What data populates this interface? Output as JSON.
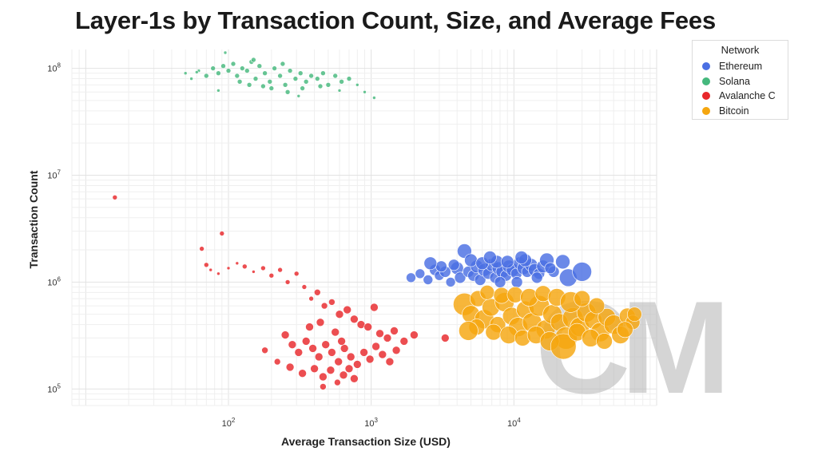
{
  "chart_data": {
    "type": "scatter",
    "title": "Layer-1s by Transaction Count, Size, and Average Fees",
    "xlabel": "Average Transaction Size (USD)",
    "ylabel": "Transaction Count",
    "xscale": "log",
    "yscale": "log",
    "xlim": [
      8,
      100000
    ],
    "ylim": [
      70000,
      150000000
    ],
    "grid": true,
    "x_ticks": [
      {
        "value": 100,
        "base": "10",
        "exp": "2"
      },
      {
        "value": 1000,
        "base": "10",
        "exp": "3"
      },
      {
        "value": 10000,
        "base": "10",
        "exp": "4"
      }
    ],
    "y_ticks": [
      {
        "value": 100000,
        "base": "10",
        "exp": "5"
      },
      {
        "value": 1000000,
        "base": "10",
        "exp": "6"
      },
      {
        "value": 10000000,
        "base": "10",
        "exp": "7"
      },
      {
        "value": 100000000,
        "base": "10",
        "exp": "8"
      }
    ],
    "legend_title": "Network",
    "legend_position": "top-right",
    "watermark": "CM",
    "series": [
      {
        "name": "Ethereum",
        "color": "#4a6fe3",
        "points": [
          [
            1900,
            1100000,
            6
          ],
          [
            2200,
            1200000,
            6
          ],
          [
            2500,
            1050000,
            6
          ],
          [
            2800,
            1300000,
            7
          ],
          [
            3000,
            1150000,
            6
          ],
          [
            3300,
            1250000,
            7
          ],
          [
            3600,
            1000000,
            6
          ],
          [
            4000,
            1350000,
            8
          ],
          [
            4200,
            1100000,
            7
          ],
          [
            4500,
            1950000,
            9
          ],
          [
            4800,
            1250000,
            7
          ],
          [
            5200,
            1150000,
            7
          ],
          [
            5500,
            1400000,
            8
          ],
          [
            5800,
            1050000,
            7
          ],
          [
            6200,
            1300000,
            8
          ],
          [
            6600,
            1200000,
            7
          ],
          [
            7000,
            1450000,
            8
          ],
          [
            7400,
            1100000,
            7
          ],
          [
            7800,
            1350000,
            8
          ],
          [
            8300,
            1250000,
            8
          ],
          [
            8800,
            1150000,
            7
          ],
          [
            9200,
            1400000,
            8
          ],
          [
            9800,
            1300000,
            8
          ],
          [
            10400,
            1200000,
            7
          ],
          [
            11000,
            1500000,
            8
          ],
          [
            11700,
            1350000,
            8
          ],
          [
            12400,
            1250000,
            7
          ],
          [
            13200,
            1450000,
            8
          ],
          [
            14000,
            1300000,
            8
          ],
          [
            15000,
            1200000,
            7
          ],
          [
            16000,
            1400000,
            8
          ],
          [
            17000,
            1600000,
            9
          ],
          [
            19000,
            1250000,
            7
          ],
          [
            22000,
            1550000,
            9
          ],
          [
            24000,
            1100000,
            11
          ],
          [
            30000,
            1250000,
            12
          ],
          [
            5000,
            1600000,
            8
          ],
          [
            6000,
            1500000,
            8
          ],
          [
            7600,
            1550000,
            8
          ],
          [
            9000,
            1550000,
            8
          ],
          [
            12000,
            1600000,
            8
          ],
          [
            3800,
            1450000,
            7
          ],
          [
            3100,
            1400000,
            7
          ],
          [
            8000,
            1000000,
            7
          ],
          [
            10500,
            1000000,
            7
          ],
          [
            14500,
            1100000,
            7
          ],
          [
            18000,
            1350000,
            7
          ],
          [
            2600,
            1500000,
            8
          ],
          [
            6800,
            1700000,
            8
          ],
          [
            11300,
            1700000,
            8
          ]
        ]
      },
      {
        "name": "Solana",
        "color": "#45b87d",
        "points": [
          [
            50,
            90000000,
            2
          ],
          [
            55,
            80000000,
            2
          ],
          [
            62,
            95000000,
            2
          ],
          [
            70,
            85000000,
            3
          ],
          [
            78,
            100000000,
            3
          ],
          [
            85,
            90000000,
            3
          ],
          [
            92,
            105000000,
            3
          ],
          [
            100,
            95000000,
            3
          ],
          [
            108,
            110000000,
            3
          ],
          [
            115,
            85000000,
            3
          ],
          [
            125,
            100000000,
            3
          ],
          [
            135,
            95000000,
            3
          ],
          [
            145,
            115000000,
            3
          ],
          [
            155,
            80000000,
            3
          ],
          [
            165,
            105000000,
            3
          ],
          [
            180,
            90000000,
            3
          ],
          [
            195,
            75000000,
            3
          ],
          [
            210,
            100000000,
            3
          ],
          [
            230,
            85000000,
            3
          ],
          [
            250,
            70000000,
            3
          ],
          [
            270,
            95000000,
            3
          ],
          [
            295,
            80000000,
            3
          ],
          [
            320,
            90000000,
            3
          ],
          [
            350,
            75000000,
            3
          ],
          [
            380,
            85000000,
            3
          ],
          [
            420,
            80000000,
            3
          ],
          [
            460,
            90000000,
            3
          ],
          [
            500,
            70000000,
            3
          ],
          [
            560,
            85000000,
            3
          ],
          [
            620,
            75000000,
            3
          ],
          [
            700,
            80000000,
            3
          ],
          [
            800,
            70000000,
            2
          ],
          [
            900,
            60000000,
            2
          ],
          [
            1050,
            53000000,
            2
          ],
          [
            95,
            140000000,
            2
          ],
          [
            60,
            92000000,
            2
          ],
          [
            140,
            70000000,
            3
          ],
          [
            200,
            65000000,
            3
          ],
          [
            260,
            60000000,
            3
          ],
          [
            330,
            65000000,
            3
          ],
          [
            440,
            68000000,
            3
          ],
          [
            150,
            120000000,
            3
          ],
          [
            240,
            110000000,
            3
          ],
          [
            120,
            75000000,
            3
          ],
          [
            175,
            68000000,
            3
          ],
          [
            600,
            62000000,
            2
          ],
          [
            310,
            55000000,
            2
          ],
          [
            85,
            62000000,
            2
          ]
        ]
      },
      {
        "name": "Avalanche C",
        "color": "#e8272b",
        "points": [
          [
            16,
            6200000,
            3
          ],
          [
            90,
            2850000,
            3
          ],
          [
            65,
            2050000,
            3
          ],
          [
            70,
            1450000,
            3
          ],
          [
            75,
            1300000,
            2
          ],
          [
            85,
            1200000,
            2
          ],
          [
            100,
            1350000,
            2
          ],
          [
            115,
            1500000,
            2
          ],
          [
            130,
            1400000,
            3
          ],
          [
            150,
            1250000,
            2
          ],
          [
            175,
            1350000,
            3
          ],
          [
            200,
            1150000,
            3
          ],
          [
            230,
            1300000,
            3
          ],
          [
            260,
            1000000,
            3
          ],
          [
            300,
            1200000,
            3
          ],
          [
            340,
            900000,
            3
          ],
          [
            380,
            700000,
            3
          ],
          [
            420,
            800000,
            4
          ],
          [
            470,
            600000,
            4
          ],
          [
            530,
            650000,
            4
          ],
          [
            600,
            500000,
            5
          ],
          [
            680,
            550000,
            5
          ],
          [
            760,
            450000,
            5
          ],
          [
            850,
            400000,
            5
          ],
          [
            950,
            380000,
            5
          ],
          [
            1050,
            580000,
            5
          ],
          [
            1150,
            330000,
            5
          ],
          [
            1300,
            300000,
            5
          ],
          [
            1450,
            350000,
            5
          ],
          [
            1700,
            280000,
            5
          ],
          [
            2000,
            320000,
            5
          ],
          [
            3300,
            300000,
            5
          ],
          [
            250,
            320000,
            5
          ],
          [
            280,
            260000,
            5
          ],
          [
            310,
            220000,
            5
          ],
          [
            350,
            280000,
            5
          ],
          [
            390,
            240000,
            5
          ],
          [
            430,
            200000,
            5
          ],
          [
            480,
            260000,
            5
          ],
          [
            530,
            220000,
            5
          ],
          [
            590,
            180000,
            5
          ],
          [
            650,
            240000,
            5
          ],
          [
            720,
            200000,
            5
          ],
          [
            800,
            170000,
            5
          ],
          [
            890,
            220000,
            5
          ],
          [
            980,
            190000,
            5
          ],
          [
            1080,
            250000,
            5
          ],
          [
            1200,
            210000,
            5
          ],
          [
            1350,
            180000,
            5
          ],
          [
            1500,
            230000,
            5
          ],
          [
            270,
            160000,
            5
          ],
          [
            330,
            140000,
            5
          ],
          [
            400,
            155000,
            5
          ],
          [
            460,
            130000,
            5
          ],
          [
            520,
            150000,
            5
          ],
          [
            580,
            115000,
            4
          ],
          [
            640,
            135000,
            5
          ],
          [
            700,
            155000,
            5
          ],
          [
            760,
            125000,
            5
          ],
          [
            460,
            105000,
            4
          ],
          [
            560,
            340000,
            5
          ],
          [
            620,
            280000,
            5
          ],
          [
            370,
            380000,
            5
          ],
          [
            440,
            420000,
            5
          ],
          [
            180,
            230000,
            4
          ],
          [
            220,
            180000,
            4
          ]
        ]
      },
      {
        "name": "Bitcoin",
        "color": "#f5a60f",
        "points": [
          [
            4500,
            620000,
            14
          ],
          [
            5000,
            500000,
            11
          ],
          [
            5600,
            700000,
            10
          ],
          [
            6200,
            450000,
            12
          ],
          [
            6900,
            580000,
            11
          ],
          [
            7700,
            400000,
            10
          ],
          [
            8600,
            650000,
            12
          ],
          [
            9600,
            480000,
            11
          ],
          [
            10700,
            380000,
            12
          ],
          [
            12000,
            550000,
            11
          ],
          [
            13400,
            420000,
            12
          ],
          [
            15000,
            600000,
            13
          ],
          [
            16700,
            360000,
            12
          ],
          [
            18600,
            500000,
            12
          ],
          [
            20800,
            420000,
            11
          ],
          [
            23200,
            300000,
            14
          ],
          [
            25900,
            460000,
            13
          ],
          [
            28900,
            380000,
            12
          ],
          [
            32200,
            520000,
            12
          ],
          [
            36000,
            440000,
            11
          ],
          [
            40200,
            340000,
            12
          ],
          [
            44800,
            470000,
            11
          ],
          [
            50000,
            400000,
            12
          ],
          [
            55800,
            320000,
            11
          ],
          [
            62300,
            480000,
            10
          ],
          [
            68000,
            420000,
            9
          ],
          [
            5500,
            380000,
            10
          ],
          [
            7200,
            340000,
            10
          ],
          [
            9200,
            320000,
            11
          ],
          [
            11500,
            300000,
            10
          ],
          [
            14300,
            320000,
            11
          ],
          [
            17800,
            280000,
            12
          ],
          [
            22200,
            250000,
            16
          ],
          [
            27700,
            340000,
            11
          ],
          [
            34500,
            300000,
            11
          ],
          [
            43000,
            280000,
            10
          ],
          [
            6500,
            800000,
            9
          ],
          [
            8200,
            750000,
            10
          ],
          [
            10200,
            760000,
            10
          ],
          [
            12800,
            720000,
            11
          ],
          [
            16000,
            780000,
            10
          ],
          [
            20000,
            720000,
            11
          ],
          [
            25000,
            650000,
            13
          ],
          [
            30000,
            700000,
            10
          ],
          [
            4800,
            350000,
            12
          ],
          [
            60000,
            360000,
            10
          ],
          [
            70000,
            500000,
            9
          ],
          [
            38000,
            600000,
            10
          ]
        ]
      }
    ]
  }
}
